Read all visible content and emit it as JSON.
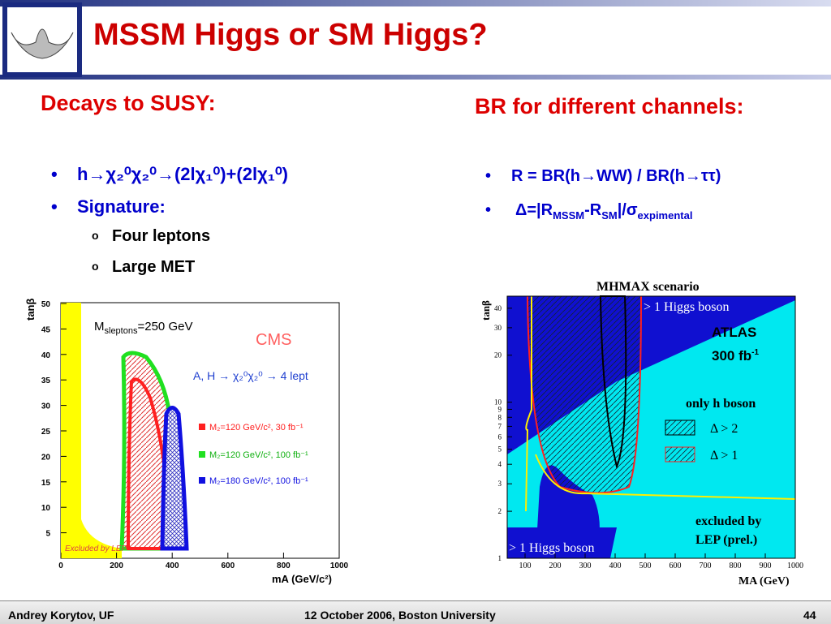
{
  "header": {
    "title": "MSSM Higgs or SM Higgs?"
  },
  "left": {
    "heading": "Decays to SUSY:",
    "bullets": [
      "h→χ₂⁰χ₂⁰→(2lχ₁⁰)+(2lχ₁⁰)",
      "Signature:"
    ],
    "sub_bullets": [
      "Four leptons",
      "Large MET"
    ]
  },
  "right": {
    "heading": "BR for different channels:",
    "bullet1": "R = BR(h→WW) / BR(h→ττ)",
    "bullet2": [
      "Δ=|R",
      "MSSM",
      "-R",
      "SM",
      "|/σ",
      "expimental"
    ]
  },
  "plot_left": {
    "y_label": "tanβ",
    "x_label": "mA (GeV/c²)",
    "yticks": [
      5,
      10,
      15,
      20,
      25,
      30,
      35,
      40,
      45,
      50
    ],
    "xticks": [
      0,
      200,
      400,
      600,
      800,
      1000
    ],
    "mass_label": [
      "M",
      "sleptons",
      "=250 GeV"
    ],
    "experiment": "CMS",
    "process": "A, H → χ₂⁰χ₂⁰ → 4 lept",
    "legend": [
      "M₂=120 GeV/c², 30 fb⁻¹",
      "M₂=120 GeV/c², 100 fb⁻¹",
      "M₂=180 GeV/c², 100 fb⁻¹"
    ],
    "lep": "Excluded by LEP"
  },
  "plot_right": {
    "title": "MHMAX scenario",
    "top_region": "> 1 Higgs boson",
    "experiment": "ATLAS",
    "lumi": [
      "300 fb",
      "-1"
    ],
    "only_h": "only h boson",
    "legend": [
      "Δ > 2",
      "Δ > 1"
    ],
    "lep": [
      "excluded by",
      "LEP (prel.)"
    ],
    "bottom_region": "> 1 Higgs boson",
    "y_label": "tanβ",
    "x_label": "MA (GeV)",
    "yticks": [
      1,
      2,
      3,
      4,
      5,
      6,
      7,
      8,
      9,
      10,
      20,
      30,
      40
    ],
    "xticks": [
      100,
      200,
      300,
      400,
      500,
      600,
      700,
      800,
      900,
      1000
    ]
  },
  "footer": {
    "author": "Andrey Korytov, UF",
    "event": "12 October 2006, Boston University",
    "page": "44"
  }
}
